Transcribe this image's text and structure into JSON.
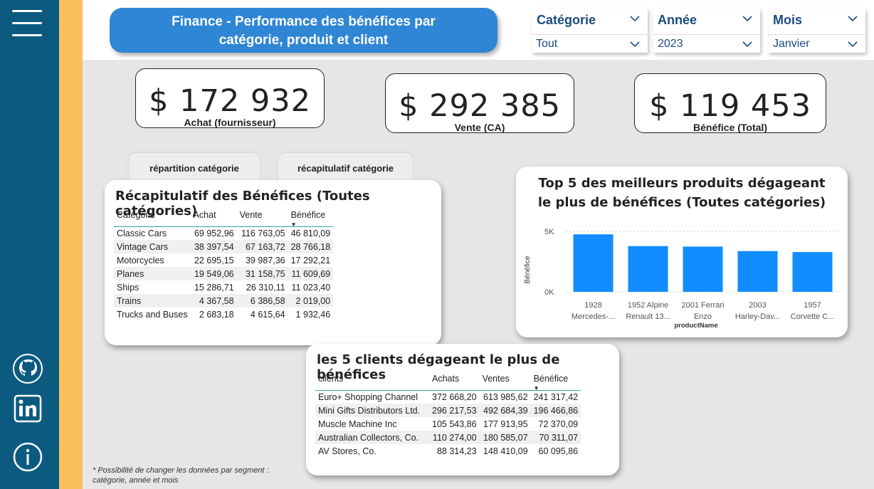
{
  "header": {
    "title_line1": "Finance - Performance des bénéfices par",
    "title_line2": "catégorie, produit et client"
  },
  "sidebar": {
    "icons": [
      "menu-icon",
      "github-icon",
      "linkedin-icon",
      "info-icon"
    ]
  },
  "slicers": [
    {
      "label": "Catégorie",
      "value": "Tout"
    },
    {
      "label": "Année",
      "value": "2023"
    },
    {
      "label": "Mois",
      "value": "Janvier"
    }
  ],
  "kpis": [
    {
      "value": "$ 172 932",
      "caption": "Achat (fournisseur)"
    },
    {
      "value": "$ 292 385",
      "caption": "Vente (CA)"
    },
    {
      "value": "$ 119 453",
      "caption": "Bénéfice (Total)"
    }
  ],
  "nav_buttons": [
    "répartition catégorie",
    "récapitulatif catégorie"
  ],
  "category_table": {
    "title": "Récapitulatif des Bénéfices (Toutes catégories)",
    "headers": [
      "Catégorie",
      "Achat",
      "Vente",
      "Bénéfice"
    ],
    "rows": [
      [
        "Classic Cars",
        "69 952,96",
        "116 763,05",
        "46 810,09"
      ],
      [
        "Vintage Cars",
        "38 397,54",
        "67 163,72",
        "28 766,18"
      ],
      [
        "Motorcycles",
        "22 695,15",
        "39 987,36",
        "17 292,21"
      ],
      [
        "Planes",
        "19 549,06",
        "31 158,75",
        "11 609,69"
      ],
      [
        "Ships",
        "15 286,71",
        "26 310,11",
        "11 023,40"
      ],
      [
        "Trains",
        "4 367,58",
        "6 386,58",
        "2 019,00"
      ],
      [
        "Trucks and Buses",
        "2 683,18",
        "4 615,64",
        "1 932,46"
      ]
    ]
  },
  "client_table": {
    "title": "les 5 clients dégageant le plus de bénéfices",
    "headers": [
      "clients",
      "Achats",
      "Ventes",
      "Bénéfice"
    ],
    "rows": [
      [
        "Euro+ Shopping Channel",
        "372 668,20",
        "613 985,62",
        "241 317,42"
      ],
      [
        "Mini Gifts Distributors Ltd.",
        "296 217,53",
        "492 684,39",
        "196 466,86"
      ],
      [
        "Muscle Machine Inc",
        "105 543,86",
        "177 913,95",
        "72 370,09"
      ],
      [
        "Australian Collectors, Co.",
        "110 274,00",
        "180 585,07",
        "70 311,07"
      ],
      [
        "AV Stores, Co.",
        "88 314,23",
        "148 410,09",
        "60 095,86"
      ]
    ]
  },
  "chart_data": {
    "type": "bar",
    "title": "Top 5 des meilleurs produits dégageant le plus de bénéfices (Toutes catégories)",
    "xlabel": "productName",
    "ylabel": "Bénéfice",
    "categories": [
      [
        "1928",
        "Mercedes-..."
      ],
      [
        "1952 Alpine",
        "Renault 13..."
      ],
      [
        "2001 Ferrari",
        "Enzo"
      ],
      [
        "2003",
        "Harley-Dav..."
      ],
      [
        "1957",
        "Corvette C..."
      ]
    ],
    "values": [
      4750,
      3780,
      3740,
      3370,
      3290
    ],
    "ylim": [
      0,
      5000
    ],
    "yticks": [
      "0K",
      "5K"
    ],
    "bar_color": "#118dff",
    "grid": true
  },
  "footnote": [
    "* Possibilité de changer les données par segment :",
    "catégorie, année et mois"
  ]
}
